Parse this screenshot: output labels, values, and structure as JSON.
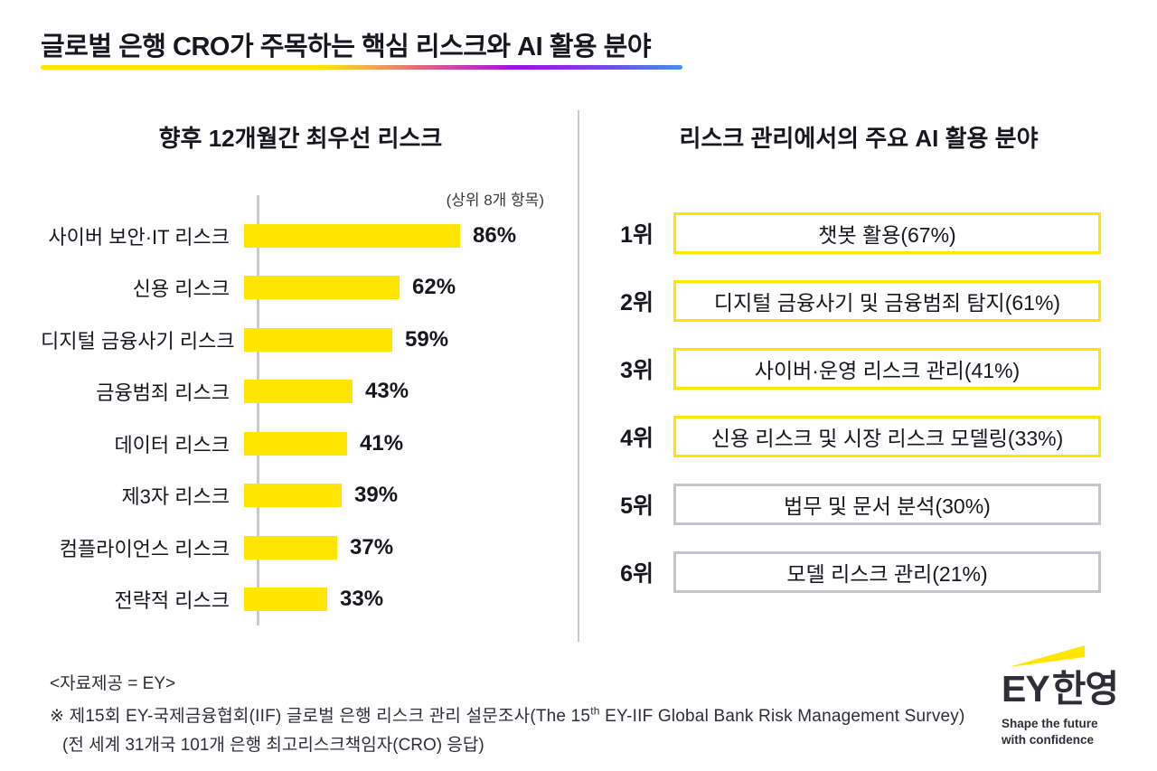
{
  "title": "글로벌 은행 CRO가 주목하는 핵심 리스크와 AI 활용 분야",
  "colors": {
    "yellow": "#FFE600",
    "dark": "#2E2E38",
    "gray_border": "#C4C4CD"
  },
  "left_chart": {
    "title": "향후 12개월간 최우선 리스크",
    "note": "(상위 8개 항목)",
    "items": [
      {
        "label": "사이버 보안·IT 리스크",
        "value": 86,
        "pct": "86%"
      },
      {
        "label": "신용 리스크",
        "value": 62,
        "pct": "62%"
      },
      {
        "label": "디지털 금융사기 리스크",
        "value": 59,
        "pct": "59%"
      },
      {
        "label": "금융범죄 리스크",
        "value": 43,
        "pct": "43%"
      },
      {
        "label": "데이터 리스크",
        "value": 41,
        "pct": "41%"
      },
      {
        "label": "제3자 리스크",
        "value": 39,
        "pct": "39%"
      },
      {
        "label": "컴플라이언스 리스크",
        "value": 37,
        "pct": "37%"
      },
      {
        "label": "전략적 리스크",
        "value": 33,
        "pct": "33%"
      }
    ]
  },
  "right_list": {
    "title": "리스크 관리에서의 주요 AI 활용 분야",
    "items": [
      {
        "rank": "1위",
        "label": "챗봇 활용(67%)",
        "highlight": true
      },
      {
        "rank": "2위",
        "label": "디지털 금융사기 및 금융범죄 탐지(61%)",
        "highlight": true
      },
      {
        "rank": "3위",
        "label": "사이버·운영 리스크 관리(41%)",
        "highlight": true
      },
      {
        "rank": "4위",
        "label": "신용 리스크 및 시장 리스크 모델링(33%)",
        "highlight": true
      },
      {
        "rank": "5위",
        "label": "법무 및 문서 분석(30%)",
        "highlight": false
      },
      {
        "rank": "6위",
        "label": "모델 리스크 관리(21%)",
        "highlight": false
      }
    ]
  },
  "footer": {
    "source": "<자료제공 = EY>",
    "note1_prefix": "※ 제15회 EY-국제금융협회(IIF) 글로벌 은행 리스크 관리 설문조사(The 15",
    "note1_sup": "th",
    "note1_suffix": " EY-IIF Global Bank Risk Management Survey)",
    "note2": "(전 세계 31개국 101개 은행 최고리스크책임자(CRO) 응답)"
  },
  "logo": {
    "brand": "EY",
    "brand_kr": "한영",
    "tagline_line1": "Shape the future",
    "tagline_line2": "with confidence"
  },
  "chart_data": [
    {
      "type": "bar",
      "orientation": "horizontal",
      "title": "향후 12개월간 최우선 리스크",
      "subtitle": "(상위 8개 항목)",
      "categories": [
        "사이버 보안·IT 리스크",
        "신용 리스크",
        "디지털 금융사기 리스크",
        "금융범죄 리스크",
        "데이터 리스크",
        "제3자 리스크",
        "컴플라이언스 리스크",
        "전략적 리스크"
      ],
      "values": [
        86,
        62,
        59,
        43,
        41,
        39,
        37,
        33
      ],
      "unit": "%",
      "xlim": [
        0,
        100
      ],
      "bar_color": "#FFE600",
      "grid": false,
      "legend": false
    },
    {
      "type": "table",
      "title": "리스크 관리에서의 주요 AI 활용 분야",
      "ranks": [
        "1위",
        "2위",
        "3위",
        "4위",
        "5위",
        "6위"
      ],
      "categories": [
        "챗봇 활용",
        "디지털 금융사기 및 금융범죄 탐지",
        "사이버·운영 리스크 관리",
        "신용 리스크 및 시장 리스크 모델링",
        "법무 및 문서 분석",
        "모델 리스크 관리"
      ],
      "values": [
        67,
        61,
        41,
        33,
        30,
        21
      ],
      "unit": "%",
      "highlighted_ranks": [
        "1위",
        "2위",
        "3위",
        "4위"
      ]
    }
  ]
}
